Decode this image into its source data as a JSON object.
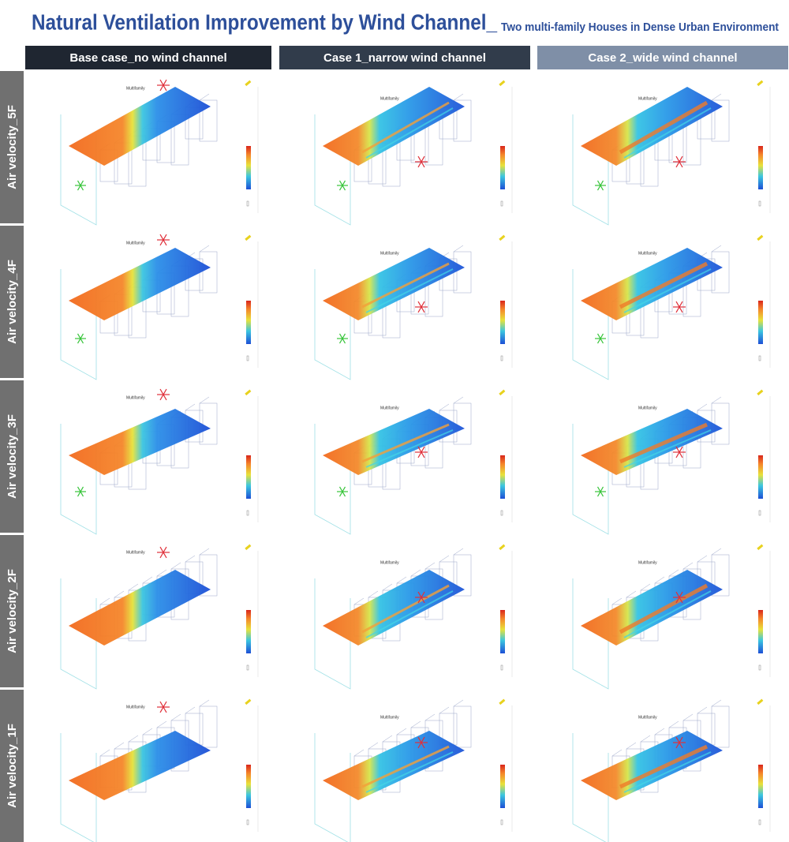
{
  "title": "Natural Ventilation Improvement by Wind Channel_",
  "subtitle": "Two multi-family Houses in Dense Urban Environment",
  "columns": [
    "Base case_no wind channel",
    "Case 1_narrow wind channel",
    "Case 2_wide wind channel"
  ],
  "rows": [
    "Air velocity_5F",
    "Air velocity_4F",
    "Air velocity_3F",
    "Air velocity_2F",
    "Air velocity_1F"
  ],
  "panel_label": "Multifamily"
}
